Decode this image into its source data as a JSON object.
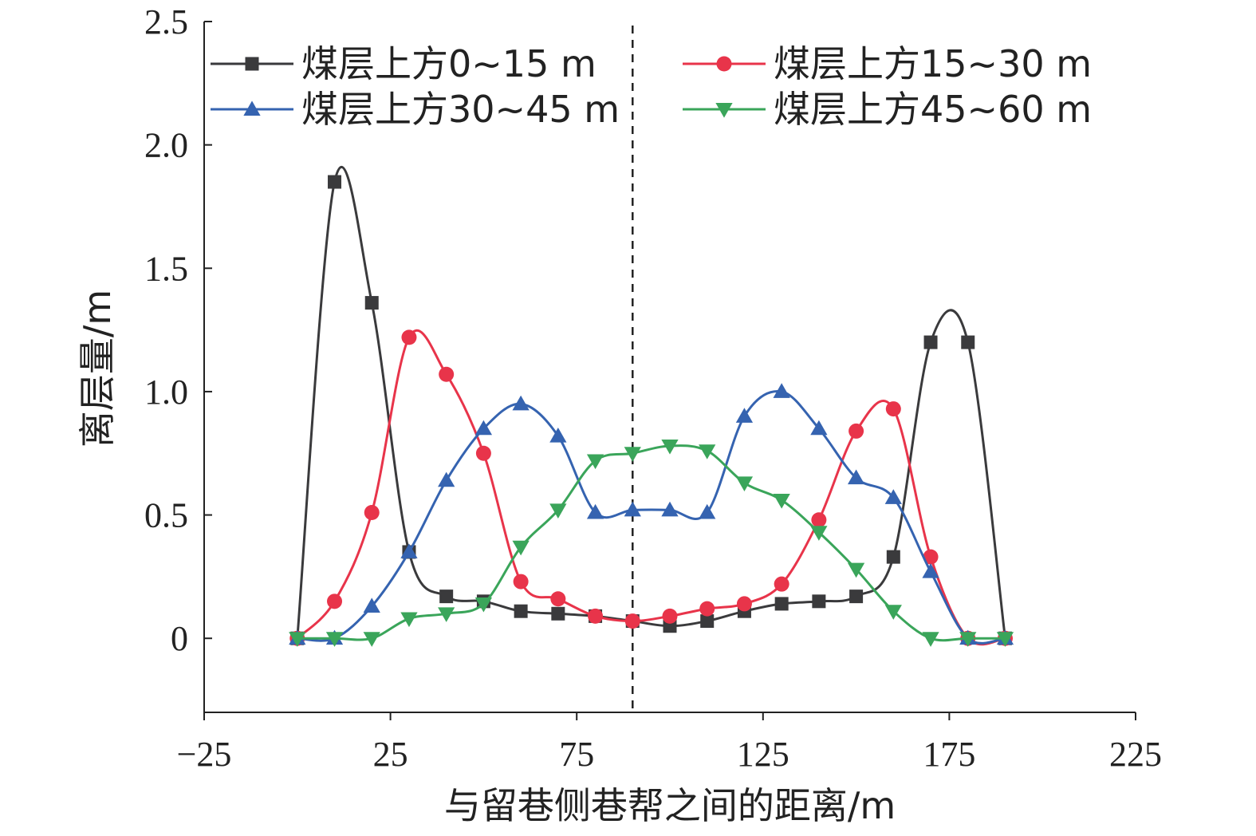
{
  "chart_data": {
    "type": "line",
    "xlabel": "与留巷侧巷帮之间的距离/m",
    "ylabel": "离层量/m",
    "xlim": [
      -25,
      225
    ],
    "ylim": [
      -0.3,
      2.5
    ],
    "xticks": [
      -25,
      25,
      75,
      125,
      175,
      225
    ],
    "xtick_labels": [
      "−25",
      "25",
      "75",
      "125",
      "175",
      "225"
    ],
    "yticks": [
      0,
      0.5,
      1.0,
      1.5,
      2.0,
      2.5
    ],
    "ytick_labels": [
      "0",
      "0.5",
      "1.0",
      "1.5",
      "2.0",
      "2.5"
    ],
    "grid": false,
    "legend_position": "top",
    "reference_line": {
      "x": 90,
      "style": "dashed"
    },
    "x": [
      0,
      10,
      20,
      30,
      40,
      50,
      60,
      70,
      80,
      90,
      100,
      110,
      120,
      130,
      140,
      150,
      160,
      170,
      180,
      190
    ],
    "series": [
      {
        "name": "煤层上方0~15 m",
        "color": "#3a3a3c",
        "marker": "square",
        "values": [
          0,
          1.85,
          1.36,
          0.35,
          0.17,
          0.15,
          0.11,
          0.1,
          0.09,
          0.07,
          0.05,
          0.07,
          0.11,
          0.14,
          0.15,
          0.17,
          0.33,
          1.2,
          1.2,
          0
        ]
      },
      {
        "name": "煤层上方15~30 m",
        "color": "#e8344a",
        "marker": "circle",
        "values": [
          0,
          0.15,
          0.51,
          1.22,
          1.07,
          0.75,
          0.23,
          0.16,
          0.09,
          0.07,
          0.09,
          0.12,
          0.14,
          0.22,
          0.48,
          0.84,
          0.93,
          0.33,
          0,
          0
        ]
      },
      {
        "name": "煤层上方30~45 m",
        "color": "#3563b0",
        "marker": "triangle-up",
        "values": [
          0,
          0,
          0.13,
          0.35,
          0.64,
          0.85,
          0.95,
          0.82,
          0.51,
          0.52,
          0.52,
          0.51,
          0.9,
          1.0,
          0.85,
          0.65,
          0.57,
          0.27,
          0,
          0
        ]
      },
      {
        "name": "煤层上方45~60 m",
        "color": "#3aa55a",
        "marker": "triangle-down",
        "values": [
          0,
          0,
          0,
          0.08,
          0.1,
          0.14,
          0.37,
          0.52,
          0.72,
          0.75,
          0.78,
          0.76,
          0.63,
          0.56,
          0.43,
          0.28,
          0.11,
          0,
          0,
          0
        ]
      }
    ]
  }
}
